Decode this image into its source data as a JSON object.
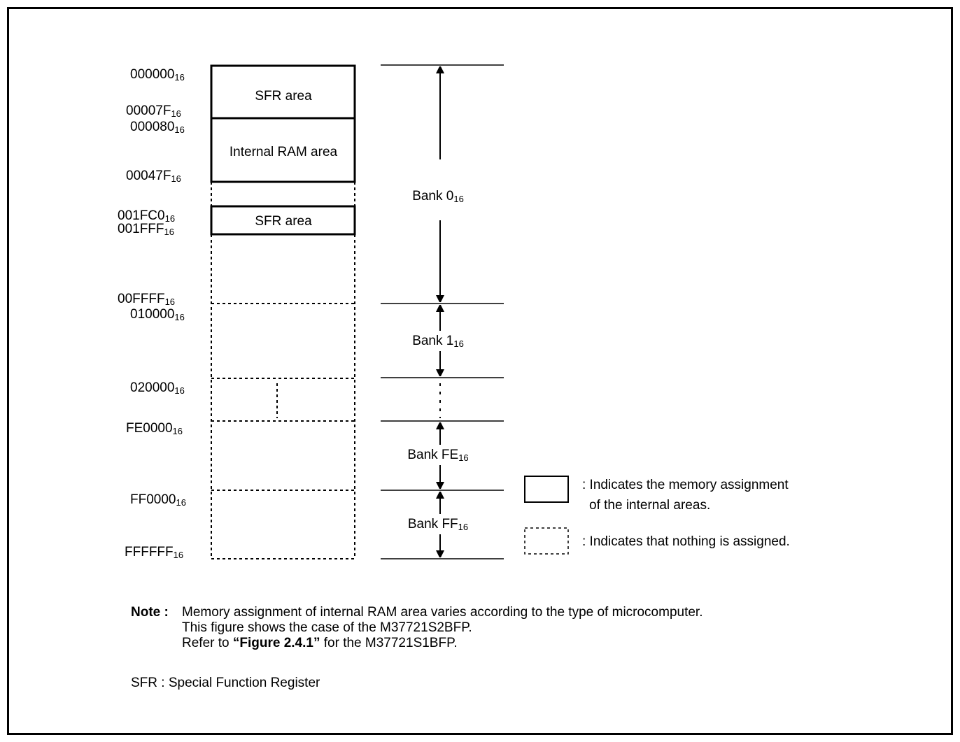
{
  "addresses": [
    {
      "base": "000000",
      "sub": "16"
    },
    {
      "base": "00007F",
      "sub": "16"
    },
    {
      "base": "000080",
      "sub": "16"
    },
    {
      "base": "00047F",
      "sub": "16"
    },
    {
      "base": "001FC0",
      "sub": "16"
    },
    {
      "base": "001FFF",
      "sub": "16"
    },
    {
      "base": "00FFFF",
      "sub": "16"
    },
    {
      "base": "010000",
      "sub": "16"
    },
    {
      "base": "020000",
      "sub": "16"
    },
    {
      "base": "FE0000",
      "sub": "16"
    },
    {
      "base": "FF0000",
      "sub": "16"
    },
    {
      "base": "FFFFFF",
      "sub": "16"
    }
  ],
  "areas": {
    "sfr_top": "SFR area",
    "internal_ram": "Internal RAM area",
    "sfr_second": "SFR area"
  },
  "banks": [
    {
      "base": "Bank 0",
      "sub": "16"
    },
    {
      "base": "Bank 1",
      "sub": "16"
    },
    {
      "base": "Bank FE",
      "sub": "16"
    },
    {
      "base": "Bank FF",
      "sub": "16"
    }
  ],
  "legend": {
    "solid_line1": ": Indicates the memory assignment",
    "solid_line2": "of the internal areas.",
    "dashed": ": Indicates that nothing is assigned."
  },
  "note": {
    "label": "Note :",
    "line1": "Memory assignment of internal RAM area varies according to the type of microcomputer.",
    "line2": "This figure shows the case of the M37721S2BFP.",
    "line3_pre": "Refer to ",
    "line3_ref": "“Figure 2.4.1”",
    "line3_post": " for the M37721S1BFP."
  },
  "sfr_def": {
    "label": "SFR :",
    "text": "Special Function Register"
  }
}
